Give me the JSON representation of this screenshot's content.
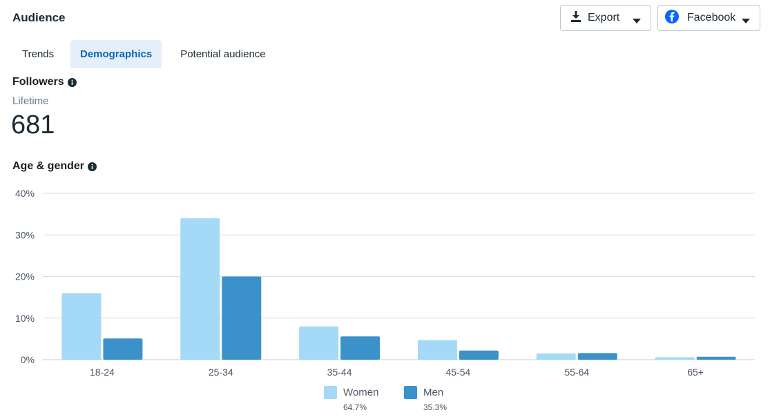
{
  "header": {
    "title": "Audience"
  },
  "toolbar": {
    "export_label": "Export",
    "platform_label": "Facebook"
  },
  "tabs": [
    {
      "label": "Trends",
      "active": false
    },
    {
      "label": "Demographics",
      "active": true
    },
    {
      "label": "Potential audience",
      "active": false
    }
  ],
  "followers": {
    "label": "Followers",
    "period": "Lifetime",
    "count": "681"
  },
  "age_gender": {
    "label": "Age & gender"
  },
  "colors": {
    "women": "#a4daf7",
    "men": "#3b92cb",
    "active_tab_bg": "#e4effa",
    "active_tab_text": "#0a66b2",
    "grid": "#dadde1"
  },
  "icons": [
    "download-icon",
    "caret-down-icon",
    "facebook-logo-icon",
    "info-icon"
  ],
  "legend": [
    {
      "name": "Women",
      "pct": "64.7%"
    },
    {
      "name": "Men",
      "pct": "35.3%"
    }
  ],
  "chart_data": {
    "type": "bar",
    "categories": [
      "18-24",
      "25-34",
      "35-44",
      "45-54",
      "55-64",
      "65+"
    ],
    "series": [
      {
        "name": "Women",
        "values": [
          16,
          34,
          8,
          4.7,
          1.5,
          0.6
        ]
      },
      {
        "name": "Men",
        "values": [
          5.1,
          20,
          5.6,
          2.2,
          1.6,
          0.7
        ]
      }
    ],
    "yticks": [
      "0%",
      "10%",
      "20%",
      "30%",
      "40%"
    ],
    "ylim": [
      0,
      40
    ],
    "grid": true,
    "legend_position": "bottom"
  }
}
